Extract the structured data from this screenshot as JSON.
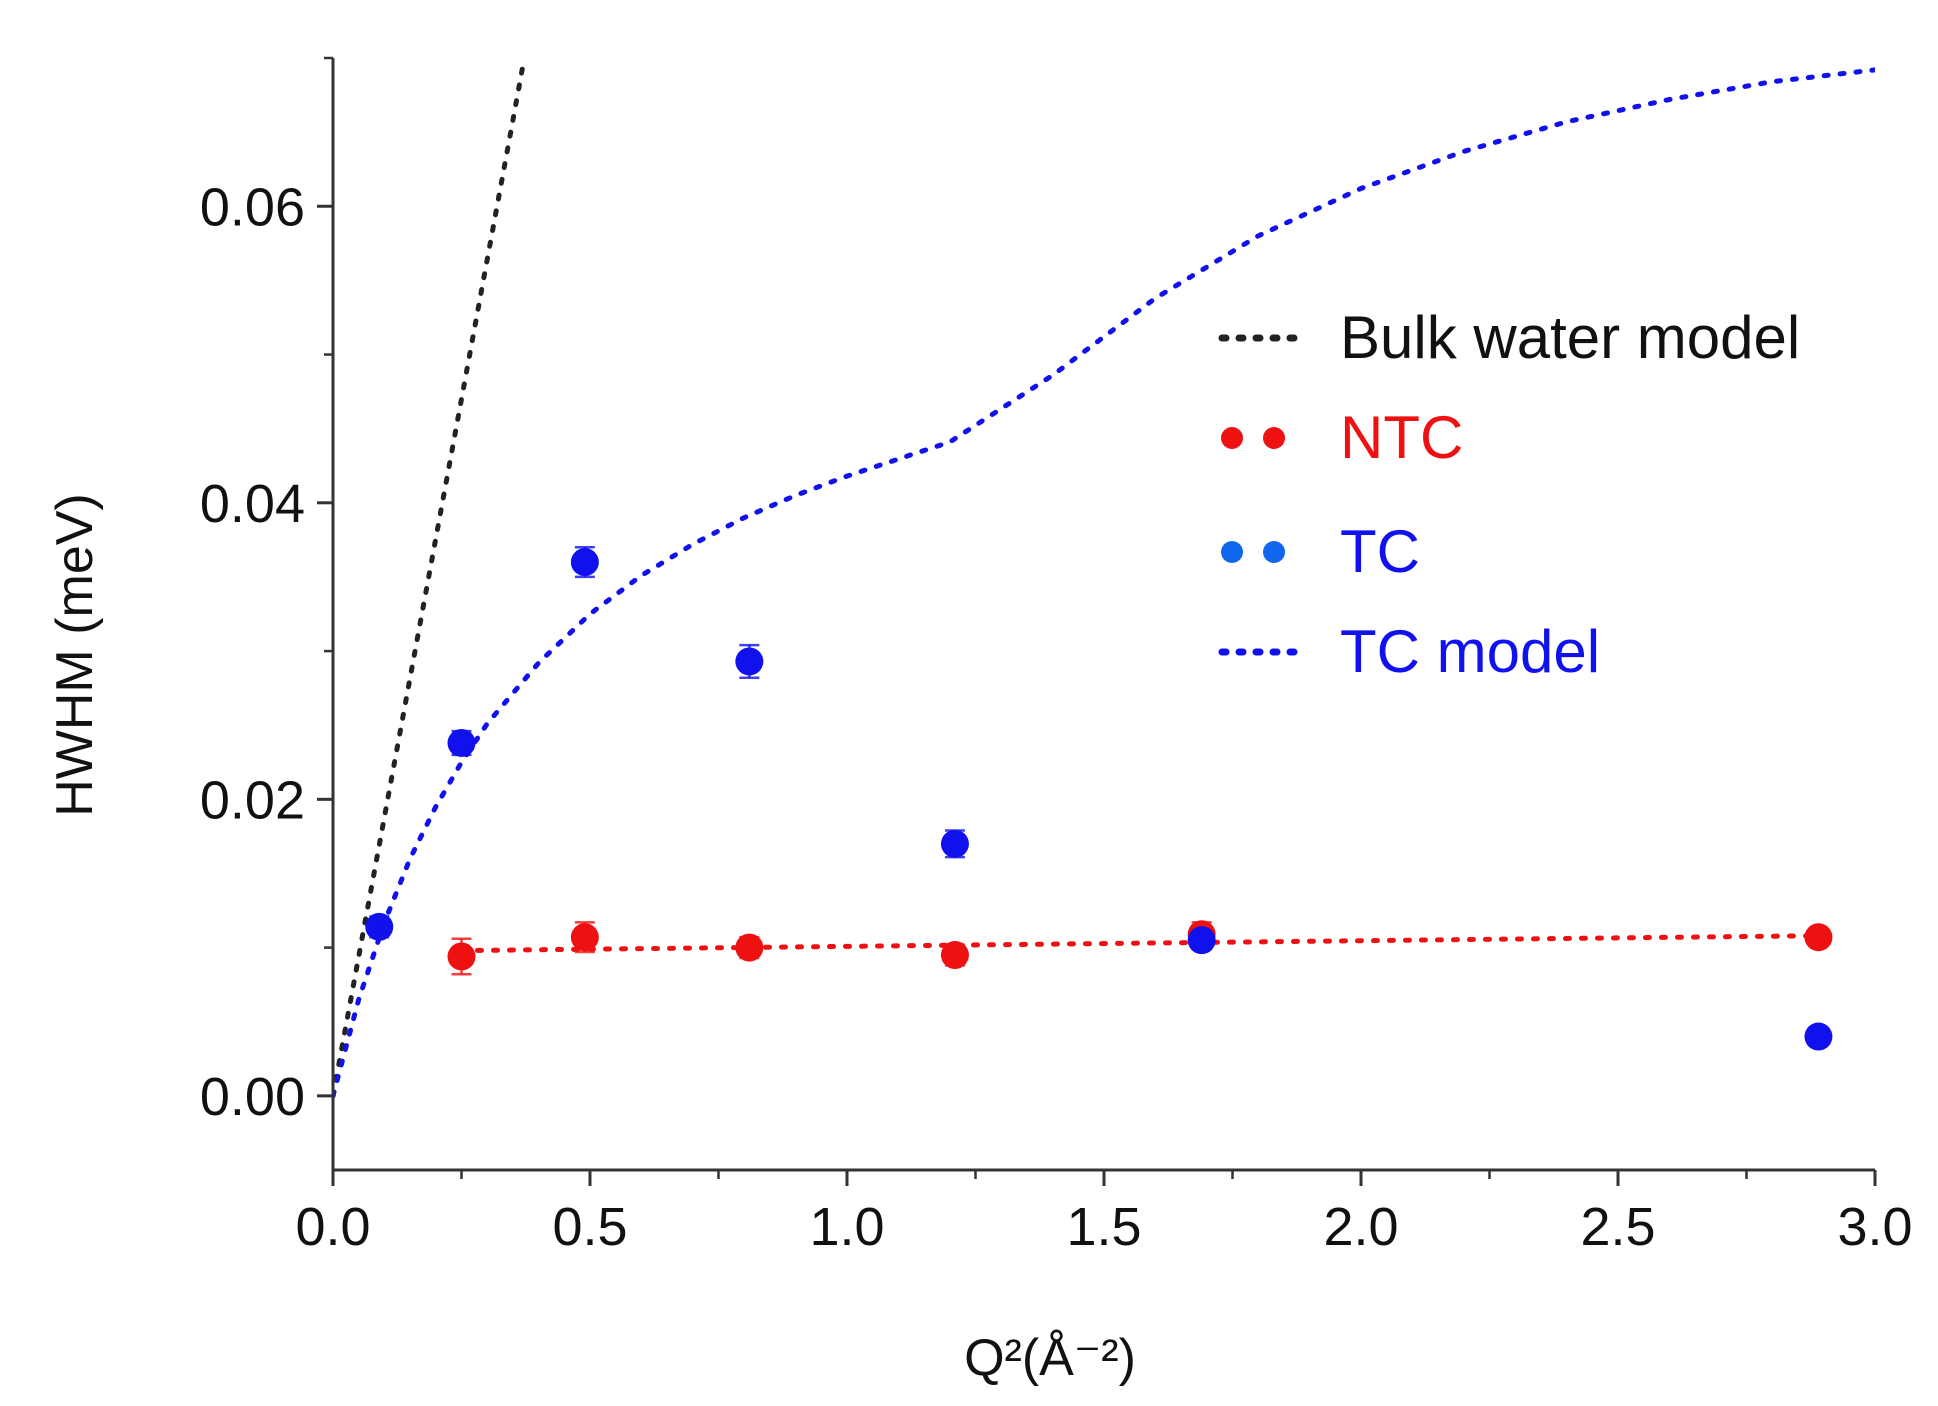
{
  "chart_data": {
    "type": "scatter",
    "title": "",
    "xlabel": "Q²(Å⁻²)",
    "ylabel": "HWHM (meV)",
    "xlim": [
      0.0,
      3.0
    ],
    "ylim": [
      -0.005,
      0.07
    ],
    "x_ticks": [
      "0.0",
      "0.5",
      "1.0",
      "1.5",
      "2.0",
      "2.5",
      "3.0"
    ],
    "y_ticks": [
      "0.00",
      "0.02",
      "0.04",
      "0.06"
    ],
    "grid": false,
    "legend_position": "right",
    "series": [
      {
        "name": "Bulk water model",
        "kind": "dotted-line",
        "color": "#222222",
        "x": [
          0.0,
          0.05,
          0.1,
          0.15,
          0.2,
          0.25,
          0.3,
          0.35,
          0.37
        ],
        "y": [
          0.0,
          0.0094,
          0.0188,
          0.0282,
          0.0376,
          0.047,
          0.0564,
          0.0658,
          0.0696
        ]
      },
      {
        "name": "NTC",
        "kind": "points",
        "color": "#ee1111",
        "x": [
          0.25,
          0.49,
          0.81,
          1.21,
          1.69,
          2.89
        ],
        "y": [
          0.0094,
          0.0107,
          0.01,
          0.0095,
          0.0109,
          0.0107
        ],
        "err": [
          0.0012,
          0.001,
          0.0007,
          0.0007,
          0.0008,
          0.0005
        ]
      },
      {
        "name": "",
        "kind": "dotted-line",
        "color": "#ee1111",
        "x": [
          0.25,
          2.89
        ],
        "y": [
          0.0098,
          0.0108
        ]
      },
      {
        "name": "TC",
        "kind": "points",
        "color": "#1111ee",
        "x": [
          0.09,
          0.25,
          0.49,
          0.81,
          1.21,
          1.69,
          2.89
        ],
        "y": [
          0.0114,
          0.0238,
          0.036,
          0.0293,
          0.017,
          0.0105,
          0.004
        ],
        "err": [
          0.0007,
          0.0008,
          0.001,
          0.0011,
          0.0009,
          0.0006,
          0.0004
        ]
      },
      {
        "name": "TC model",
        "kind": "dotted-line",
        "color": "#1111ee",
        "x": [
          0.0,
          0.05,
          0.1,
          0.15,
          0.2,
          0.25,
          0.3,
          0.4,
          0.5,
          0.6,
          0.7,
          0.8,
          0.9,
          1.0,
          1.2,
          1.4,
          1.6,
          1.8,
          2.0,
          2.2,
          2.4,
          2.6,
          2.8,
          3.0
        ],
        "y": [
          0.0,
          0.0065,
          0.0117,
          0.016,
          0.0195,
          0.0225,
          0.0251,
          0.0292,
          0.0325,
          0.0351,
          0.0372,
          0.039,
          0.0405,
          0.0418,
          0.0441,
          0.0486,
          0.0538,
          0.058,
          0.0612,
          0.0637,
          0.0657,
          0.0672,
          0.0684,
          0.0692
        ]
      }
    ],
    "legend": [
      {
        "label": "Bulk water model",
        "color": "#222222",
        "text_color": "#111111",
        "kind": "dotted-line"
      },
      {
        "label": "NTC",
        "color": "#ee1111",
        "text_color": "#ee1111",
        "kind": "dots"
      },
      {
        "label": "TC",
        "color": "#1166ee",
        "text_color": "#1111ee",
        "kind": "dots"
      },
      {
        "label": "TC model",
        "color": "#1111ee",
        "text_color": "#1111ee",
        "kind": "dotted-line"
      }
    ]
  }
}
